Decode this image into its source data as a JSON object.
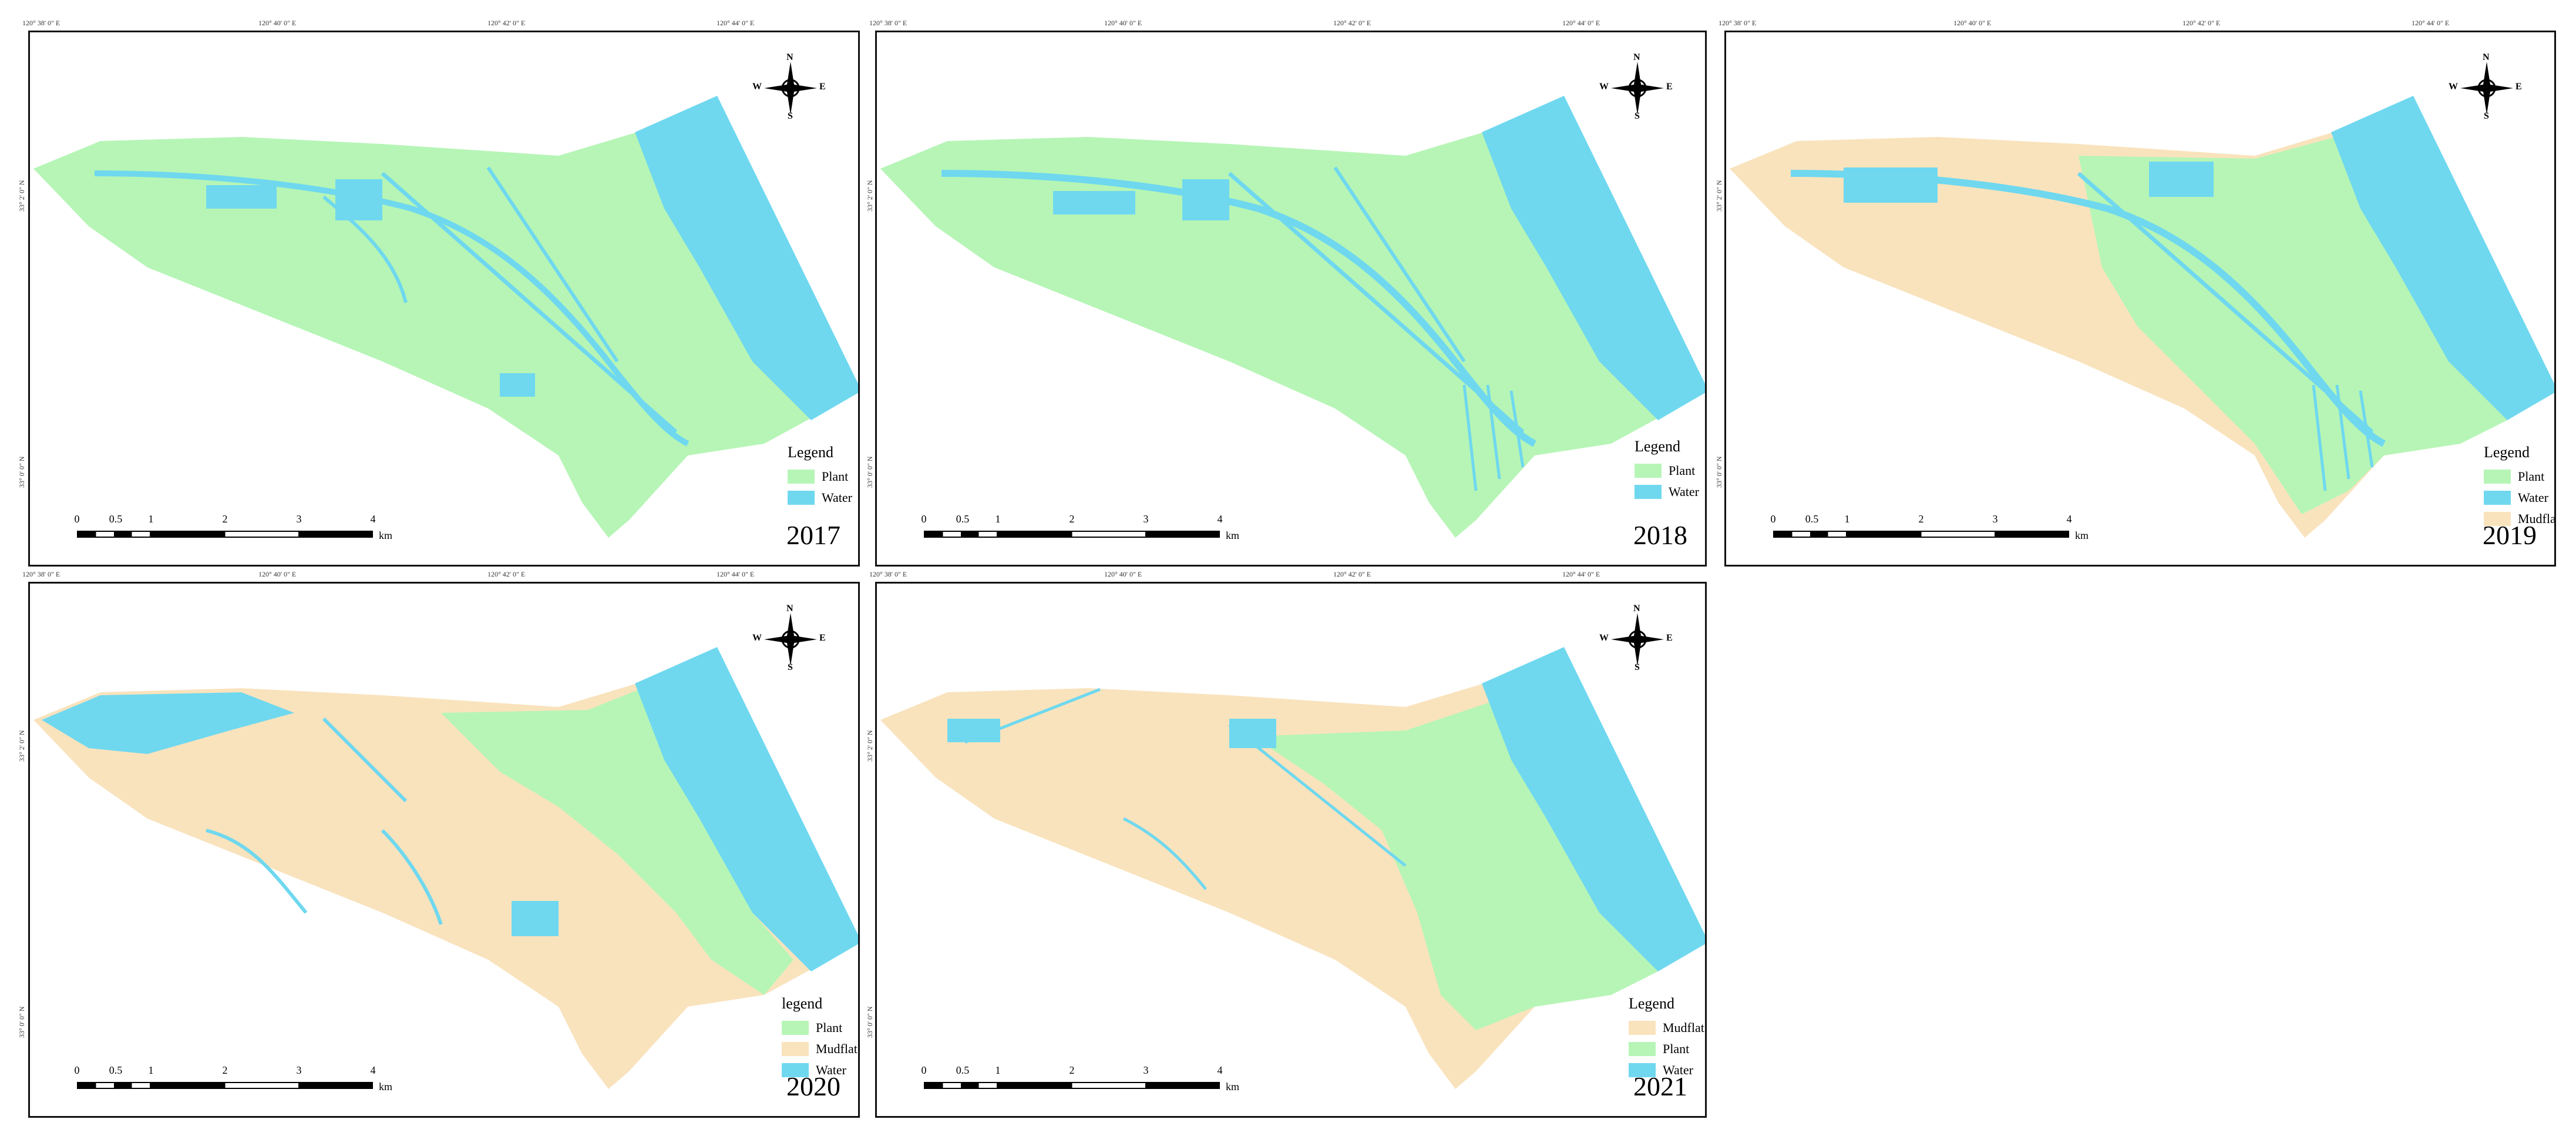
{
  "colors": {
    "plant": "#b6f5b6",
    "water": "#6fd8ef",
    "mudflat": "#f9e3bd"
  },
  "coord_labels": {
    "top": [
      "120° 38' 0\" E",
      "120° 40' 0\" E",
      "120° 42' 0\" E",
      "120° 44' 0\" E"
    ],
    "left": [
      "33° 2' 0\" N",
      "33° 0' 0\" N"
    ]
  },
  "compass": {
    "n": "N",
    "s": "S",
    "e": "E",
    "w": "W"
  },
  "scalebar": {
    "ticks": [
      "0",
      "0.5",
      "1",
      "2",
      "3",
      "4"
    ],
    "unit": "km"
  },
  "panels": [
    {
      "year": "2017",
      "legend_title": "Legend",
      "legend": [
        {
          "label": "Plant",
          "class": "plant"
        },
        {
          "label": "Water",
          "class": "water"
        }
      ]
    },
    {
      "year": "2018",
      "legend_title": "Legend",
      "legend": [
        {
          "label": "Plant",
          "class": "plant"
        },
        {
          "label": "Water",
          "class": "water"
        }
      ]
    },
    {
      "year": "2019",
      "legend_title": "Legend",
      "legend": [
        {
          "label": "Plant",
          "class": "plant"
        },
        {
          "label": "Water",
          "class": "water"
        },
        {
          "label": "Mudflat",
          "class": "mudflat"
        }
      ]
    },
    {
      "year": "2020",
      "legend_title": "legend",
      "legend": [
        {
          "label": "Plant",
          "class": "plant"
        },
        {
          "label": "Mudflat",
          "class": "mudflat"
        },
        {
          "label": "Water",
          "class": "water"
        }
      ]
    },
    {
      "year": "2021",
      "legend_title": "Legend",
      "legend": [
        {
          "label": "Mudflat",
          "class": "mudflat"
        },
        {
          "label": "Plant",
          "class": "plant"
        },
        {
          "label": "Water",
          "class": "water"
        }
      ]
    }
  ]
}
